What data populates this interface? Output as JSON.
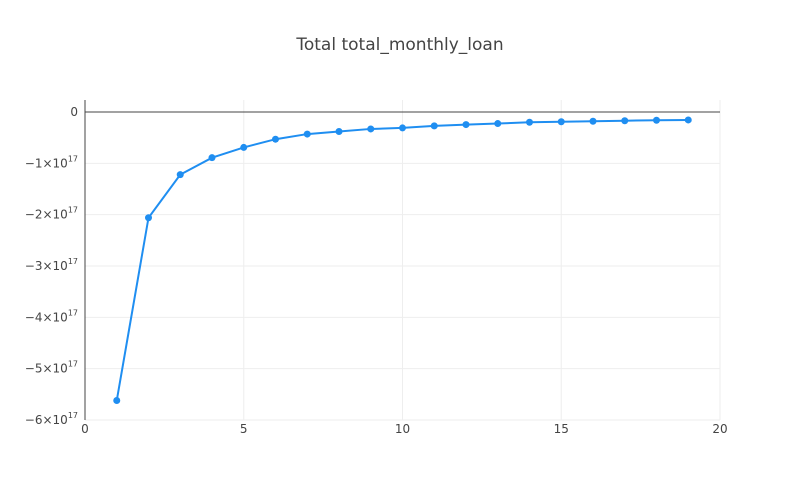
{
  "chart_data": {
    "type": "line",
    "title": "Total total_monthly_loan",
    "xlabel": "",
    "ylabel": "",
    "xlim": [
      0,
      20
    ],
    "ylim": [
      -6e+17,
      0
    ],
    "grid": true,
    "legend": "none",
    "color": "#1f8ef1",
    "x_ticks": [
      {
        "value": 0,
        "label": "0"
      },
      {
        "value": 5,
        "label": "5"
      },
      {
        "value": 10,
        "label": "10"
      },
      {
        "value": 15,
        "label": "15"
      },
      {
        "value": 20,
        "label": "20"
      }
    ],
    "y_ticks": [
      {
        "value": 0,
        "label": "0",
        "exp": ""
      },
      {
        "value": -1e+17,
        "label": "−1×10",
        "exp": "17"
      },
      {
        "value": -2e+17,
        "label": "−2×10",
        "exp": "17"
      },
      {
        "value": -3e+17,
        "label": "−3×10",
        "exp": "17"
      },
      {
        "value": -4e+17,
        "label": "−4×10",
        "exp": "17"
      },
      {
        "value": -5e+17,
        "label": "−5×10",
        "exp": "17"
      },
      {
        "value": -6e+17,
        "label": "−6×10",
        "exp": "17"
      }
    ],
    "series": [
      {
        "x": [
          1,
          2,
          3,
          4,
          5,
          6,
          7,
          8,
          9,
          10,
          11,
          12,
          13,
          14,
          15,
          16,
          17,
          18,
          19
        ],
        "y": [
          -5.62e+17,
          -2.06e+17,
          -1.22e+17,
          -8.9e+16,
          -6.9e+16,
          -5.3e+16,
          -4.3e+16,
          -3.8e+16,
          -3.3e+16,
          -3.1e+16,
          -2.7e+16,
          -2.45e+16,
          -2.25e+16,
          -2e+16,
          -1.9e+16,
          -1.8e+16,
          -1.7e+16,
          -1.6e+16,
          -1.55e+16
        ]
      }
    ]
  }
}
